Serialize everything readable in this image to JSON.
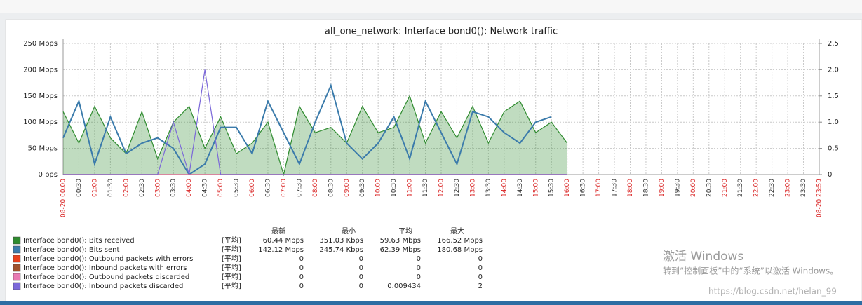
{
  "chart_data": {
    "type": "line",
    "title": "all_one_network: Interface bond0(): Network traffic",
    "categories": [
      "08-20 00:00",
      "00:30",
      "01:00",
      "01:30",
      "02:00",
      "02:30",
      "03:00",
      "03:30",
      "04:00",
      "04:30",
      "05:00",
      "05:30",
      "06:00",
      "06:30",
      "07:00",
      "07:30",
      "08:00",
      "08:30",
      "09:00",
      "09:30",
      "10:00",
      "10:30",
      "11:00",
      "11:30",
      "12:00",
      "12:30",
      "13:00",
      "13:30",
      "14:00",
      "14:30",
      "15:00",
      "15:30",
      "16:00",
      "16:30",
      "17:00",
      "17:30",
      "18:00",
      "18:30",
      "19:00",
      "19:30",
      "20:00",
      "20:30",
      "21:00",
      "21:30",
      "22:00",
      "22:30",
      "23:00",
      "23:30",
      "08-20 23:59"
    ],
    "ylim": [
      0,
      250
    ],
    "yticks": [
      {
        "value": 0,
        "label": "0 bps"
      },
      {
        "value": 50,
        "label": "50 Mbps"
      },
      {
        "value": 100,
        "label": "100 Mbps"
      },
      {
        "value": 150,
        "label": "150 Mbps"
      },
      {
        "value": 200,
        "label": "200 Mbps"
      },
      {
        "value": 250,
        "label": "250 Mbps"
      }
    ],
    "y2lim": [
      0,
      2.5
    ],
    "y2ticks": [
      0,
      0.5,
      {
        "value": 1,
        "label": "1.0"
      },
      1.5,
      {
        "value": 2,
        "label": "2.0"
      },
      2.5
    ],
    "grid": true,
    "legend_headers": [
      "最新",
      "最小",
      "平均",
      "最大"
    ],
    "series": [
      {
        "name": "Interface bond0(): Bits received",
        "color": "#2e8b2e",
        "area": true,
        "func": "[平均]",
        "stats": [
          "60.44 Mbps",
          "351.03 Kbps",
          "59.63 Mbps",
          "166.52 Mbps"
        ],
        "values": [
          120,
          60,
          130,
          70,
          40,
          120,
          30,
          100,
          130,
          50,
          110,
          40,
          60,
          100,
          0,
          130,
          80,
          90,
          60,
          130,
          80,
          90,
          150,
          60,
          120,
          70,
          130,
          60,
          120,
          140,
          80,
          100,
          60,
          null,
          null,
          null,
          null,
          null,
          null,
          null,
          null,
          null,
          null,
          null,
          null,
          null,
          null,
          null,
          null
        ]
      },
      {
        "name": "Interface bond0(): Bits sent",
        "color": "#3b7bab",
        "func": "[平均]",
        "stats": [
          "142.12 Mbps",
          "245.74 Kbps",
          "62.39 Mbps",
          "180.68 Mbps"
        ],
        "values": [
          70,
          140,
          20,
          110,
          40,
          60,
          70,
          50,
          0,
          20,
          90,
          90,
          40,
          140,
          80,
          20,
          100,
          170,
          60,
          30,
          60,
          110,
          30,
          140,
          80,
          20,
          120,
          110,
          80,
          60,
          100,
          110,
          null,
          null,
          null,
          null,
          null,
          null,
          null,
          null,
          null,
          null,
          null,
          null,
          null,
          null,
          null,
          null,
          null
        ]
      },
      {
        "name": "Interface bond0(): Outbound packets with errors",
        "color": "#e8401c",
        "axis": "y2",
        "func": "[平均]",
        "stats": [
          "0",
          "0",
          "0",
          "0"
        ],
        "values": [
          0,
          0,
          0,
          0,
          0,
          0,
          0,
          0,
          0,
          0,
          0,
          0,
          0,
          0,
          0,
          0,
          0,
          0,
          0,
          0,
          0,
          0,
          0,
          0,
          0,
          0,
          0,
          0,
          0,
          0,
          0,
          0,
          0,
          null,
          null,
          null,
          null,
          null,
          null,
          null,
          null,
          null,
          null,
          null,
          null,
          null,
          null,
          null,
          null
        ]
      },
      {
        "name": "Interface bond0(): Inbound packets with errors",
        "color": "#a0522d",
        "axis": "y2",
        "func": "[平均]",
        "stats": [
          "0",
          "0",
          "0",
          "0"
        ],
        "values": [
          0,
          0,
          0,
          0,
          0,
          0,
          0,
          0,
          0,
          0,
          0,
          0,
          0,
          0,
          0,
          0,
          0,
          0,
          0,
          0,
          0,
          0,
          0,
          0,
          0,
          0,
          0,
          0,
          0,
          0,
          0,
          0,
          0,
          null,
          null,
          null,
          null,
          null,
          null,
          null,
          null,
          null,
          null,
          null,
          null,
          null,
          null,
          null,
          null
        ]
      },
      {
        "name": "Interface bond0(): Outbound packets discarded",
        "color": "#e87ab3",
        "axis": "y2",
        "func": "[平均]",
        "stats": [
          "0",
          "0",
          "0",
          "0"
        ],
        "values": [
          0,
          0,
          0,
          0,
          0,
          0,
          0,
          0,
          0,
          0,
          0,
          0,
          0,
          0,
          0,
          0,
          0,
          0,
          0,
          0,
          0,
          0,
          0,
          0,
          0,
          0,
          0,
          0,
          0,
          0,
          0,
          0,
          0,
          null,
          null,
          null,
          null,
          null,
          null,
          null,
          null,
          null,
          null,
          null,
          null,
          null,
          null,
          null,
          null
        ]
      },
      {
        "name": "Interface bond0(): Inbound packets discarded",
        "color": "#7b68d9",
        "axis": "y2",
        "func": "[平均]",
        "stats": [
          "0",
          "0",
          "0.009434",
          "2"
        ],
        "values": [
          0,
          0,
          0,
          0,
          0,
          0,
          0,
          1,
          0,
          2,
          0,
          0,
          0,
          0,
          0,
          0,
          0,
          0,
          0,
          0,
          0,
          0,
          0,
          0,
          0,
          0,
          0,
          0,
          0,
          0,
          0,
          0,
          0,
          null,
          null,
          null,
          null,
          null,
          null,
          null,
          null,
          null,
          null,
          null,
          null,
          null,
          null,
          null,
          null
        ]
      }
    ]
  },
  "overlay": {
    "watermark_title": "激活 Windows",
    "watermark_text": "转到“控制面板”中的“系统”以激活 Windows。",
    "url": "https://blog.csdn.net/helan_99"
  }
}
